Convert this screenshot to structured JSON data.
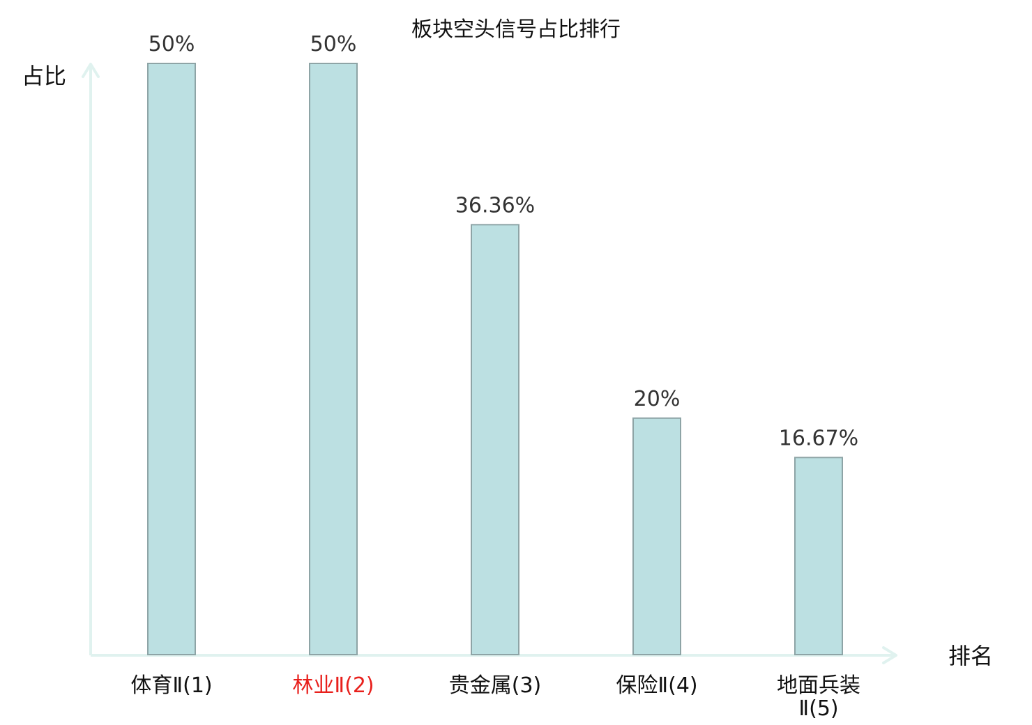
{
  "chart_data": {
    "type": "bar",
    "title": "板块空头信号占比排行",
    "ylabel": "占比",
    "xlabel": "排名",
    "ylim": [
      0,
      50
    ],
    "categories": [
      "体育Ⅱ(1)",
      "林业Ⅱ(2)",
      "贵金属(3)",
      "保险Ⅱ(4)",
      "地面兵装Ⅱ(5)"
    ],
    "category_lines": [
      [
        "体育Ⅱ(1)"
      ],
      [
        "林业Ⅱ(2)"
      ],
      [
        "贵金属(3)"
      ],
      [
        "保险Ⅱ(4)"
      ],
      [
        "地面兵装",
        "Ⅱ(5)"
      ]
    ],
    "values": [
      50,
      50,
      36.36,
      20,
      16.67
    ],
    "value_labels": [
      "50%",
      "50%",
      "36.36%",
      "20%",
      "16.67%"
    ],
    "category_colors": [
      "#111111",
      "#e8201c",
      "#111111",
      "#111111",
      "#111111"
    ],
    "bar_fill": "#bce0e2",
    "bar_stroke": "#8ea4a6",
    "axis_color": "#e0f2ef",
    "grid": false
  }
}
